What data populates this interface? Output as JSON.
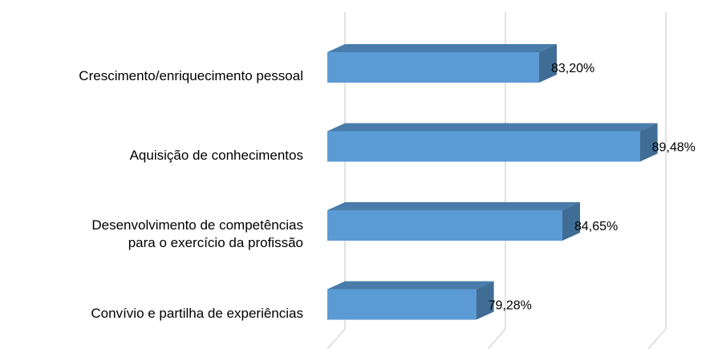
{
  "chart_data": {
    "type": "bar3d_horizontal",
    "categories": [
      "Crescimento/enriquecimento pessoal",
      "Aquisição de conhecimentos",
      "Desenvolvimento de competências\npara o exercício da profissão",
      "Convívio e partilha de experiências"
    ],
    "values": [
      83.2,
      89.48,
      84.65,
      79.28
    ],
    "value_labels": [
      "83,20%",
      "89,48%",
      "84,65%",
      "79,28%"
    ],
    "color": "#5b9bd5",
    "xlim": [
      70,
      90
    ],
    "xticks": [
      70,
      80,
      90
    ],
    "grid": true
  }
}
